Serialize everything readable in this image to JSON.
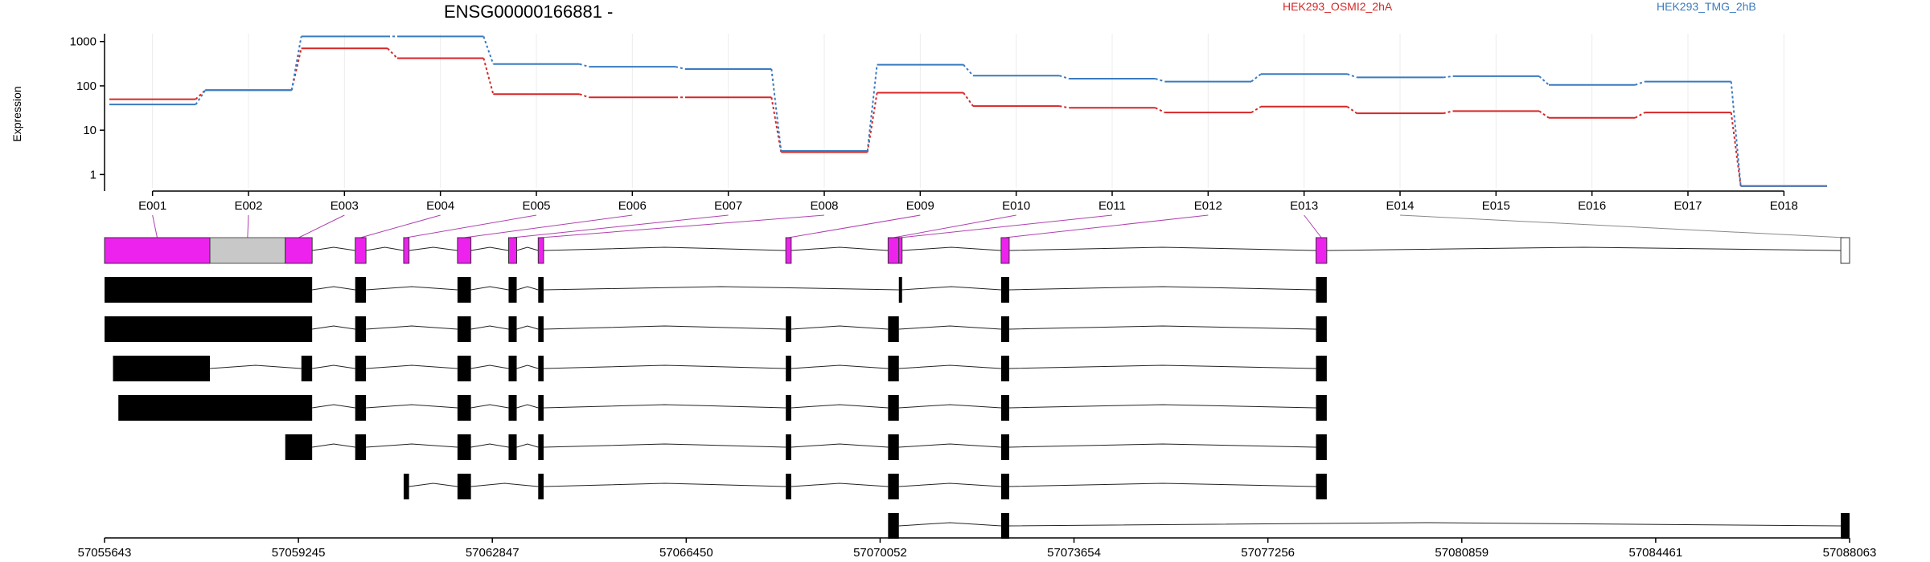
{
  "chart_data": {
    "type": "line",
    "title": "ENSG00000166881 -",
    "ylabel": "Expression",
    "yscale": "log",
    "ylim": [
      0.5,
      1500
    ],
    "yticks": [
      {
        "label": "1",
        "value": 1
      },
      {
        "label": "10",
        "value": 10
      },
      {
        "label": "100",
        "value": 100
      },
      {
        "label": "1000",
        "value": 1000
      }
    ],
    "categories": [
      "E001",
      "E002",
      "E003",
      "E004",
      "E005",
      "E006",
      "E007",
      "E008",
      "E009",
      "E010",
      "E011",
      "E012",
      "E013",
      "E014",
      "E015",
      "E016",
      "E017",
      "E018"
    ],
    "series": [
      {
        "name": "HEK293_OSMI2_2hA",
        "color": "#d62728",
        "values": [
          50,
          80,
          700,
          420,
          65,
          55,
          55,
          3.2,
          70,
          35,
          32,
          25,
          34,
          24,
          27,
          19,
          25,
          0.55
        ]
      },
      {
        "name": "HEK293_TMG_2hB",
        "color": "#3a7bbf",
        "values": [
          38,
          80,
          1300,
          1300,
          310,
          270,
          240,
          3.4,
          300,
          170,
          145,
          125,
          185,
          155,
          165,
          105,
          125,
          0.55
        ]
      }
    ],
    "grid": true,
    "legend_position": "top"
  },
  "gene_model": {
    "coordinate_ticks": [
      "57055643",
      "57059245",
      "57062847",
      "57066450",
      "57070052",
      "57073654",
      "57077256",
      "57080859",
      "57084461",
      "57088063"
    ],
    "genome_start": 57055643,
    "genome_end": 57088063,
    "exon_parts": [
      [
        57055643,
        57057600
      ],
      [
        57057600,
        57059000
      ],
      [
        57059000,
        57059500
      ],
      [
        57060300,
        57060500
      ],
      [
        57061200,
        57061300
      ],
      [
        57062200,
        57062450
      ],
      [
        57063150,
        57063300
      ],
      [
        57063700,
        57063800
      ],
      [
        57068300,
        57068400
      ],
      [
        57070200,
        57070400
      ],
      [
        57070400,
        57070450
      ],
      [
        57072300,
        57072450
      ],
      [
        57078150,
        57078350
      ],
      [
        57087900,
        57088063
      ]
    ],
    "exon_part_fill": [
      "#ee22ee",
      "#ee22ee",
      "#ee22ee",
      "#ee22ee",
      "#ee22ee",
      "#ee22ee",
      "#ee22ee",
      "#ee22ee",
      "#ee22ee",
      "#ee22ee",
      "#ee22ee",
      "#ee22ee",
      "#ee22ee",
      "#ffffff"
    ],
    "grey_region": [
      57057600,
      57059000
    ],
    "transcripts": [
      [
        [
          57055643,
          57059500
        ],
        [
          57060300,
          57060500
        ],
        [
          57062200,
          57062450
        ],
        [
          57063150,
          57063300
        ],
        [
          57063700,
          57063800
        ],
        [
          57070400,
          57070450
        ],
        [
          57072300,
          57072450
        ],
        [
          57078150,
          57078350
        ]
      ],
      [
        [
          57055643,
          57059500
        ],
        [
          57060300,
          57060500
        ],
        [
          57062200,
          57062450
        ],
        [
          57063150,
          57063300
        ],
        [
          57063700,
          57063800
        ],
        [
          57068300,
          57068400
        ],
        [
          57070200,
          57070400
        ],
        [
          57072300,
          57072450
        ],
        [
          57078150,
          57078350
        ]
      ],
      [
        [
          57055800,
          57057600
        ],
        [
          57059300,
          57059500
        ],
        [
          57060300,
          57060500
        ],
        [
          57062200,
          57062450
        ],
        [
          57063150,
          57063300
        ],
        [
          57063700,
          57063800
        ],
        [
          57068300,
          57068400
        ],
        [
          57070200,
          57070400
        ],
        [
          57072300,
          57072450
        ],
        [
          57078150,
          57078350
        ]
      ],
      [
        [
          57055900,
          57059500
        ],
        [
          57060300,
          57060500
        ],
        [
          57062200,
          57062450
        ],
        [
          57063150,
          57063300
        ],
        [
          57063700,
          57063800
        ],
        [
          57068300,
          57068400
        ],
        [
          57070200,
          57070400
        ],
        [
          57072300,
          57072450
        ],
        [
          57078150,
          57078350
        ]
      ],
      [
        [
          57059000,
          57059500
        ],
        [
          57060300,
          57060500
        ],
        [
          57062200,
          57062450
        ],
        [
          57063150,
          57063300
        ],
        [
          57063700,
          57063800
        ],
        [
          57068300,
          57068400
        ],
        [
          57070200,
          57070400
        ],
        [
          57072300,
          57072450
        ],
        [
          57078150,
          57078350
        ]
      ],
      [
        [
          57061200,
          57061300
        ],
        [
          57062200,
          57062450
        ],
        [
          57063700,
          57063800
        ],
        [
          57068300,
          57068400
        ],
        [
          57070200,
          57070400
        ],
        [
          57072300,
          57072450
        ],
        [
          57078150,
          57078350
        ]
      ],
      [
        [
          57070200,
          57070400
        ],
        [
          57072300,
          57072450
        ],
        [
          57087900,
          57088063
        ]
      ]
    ]
  }
}
